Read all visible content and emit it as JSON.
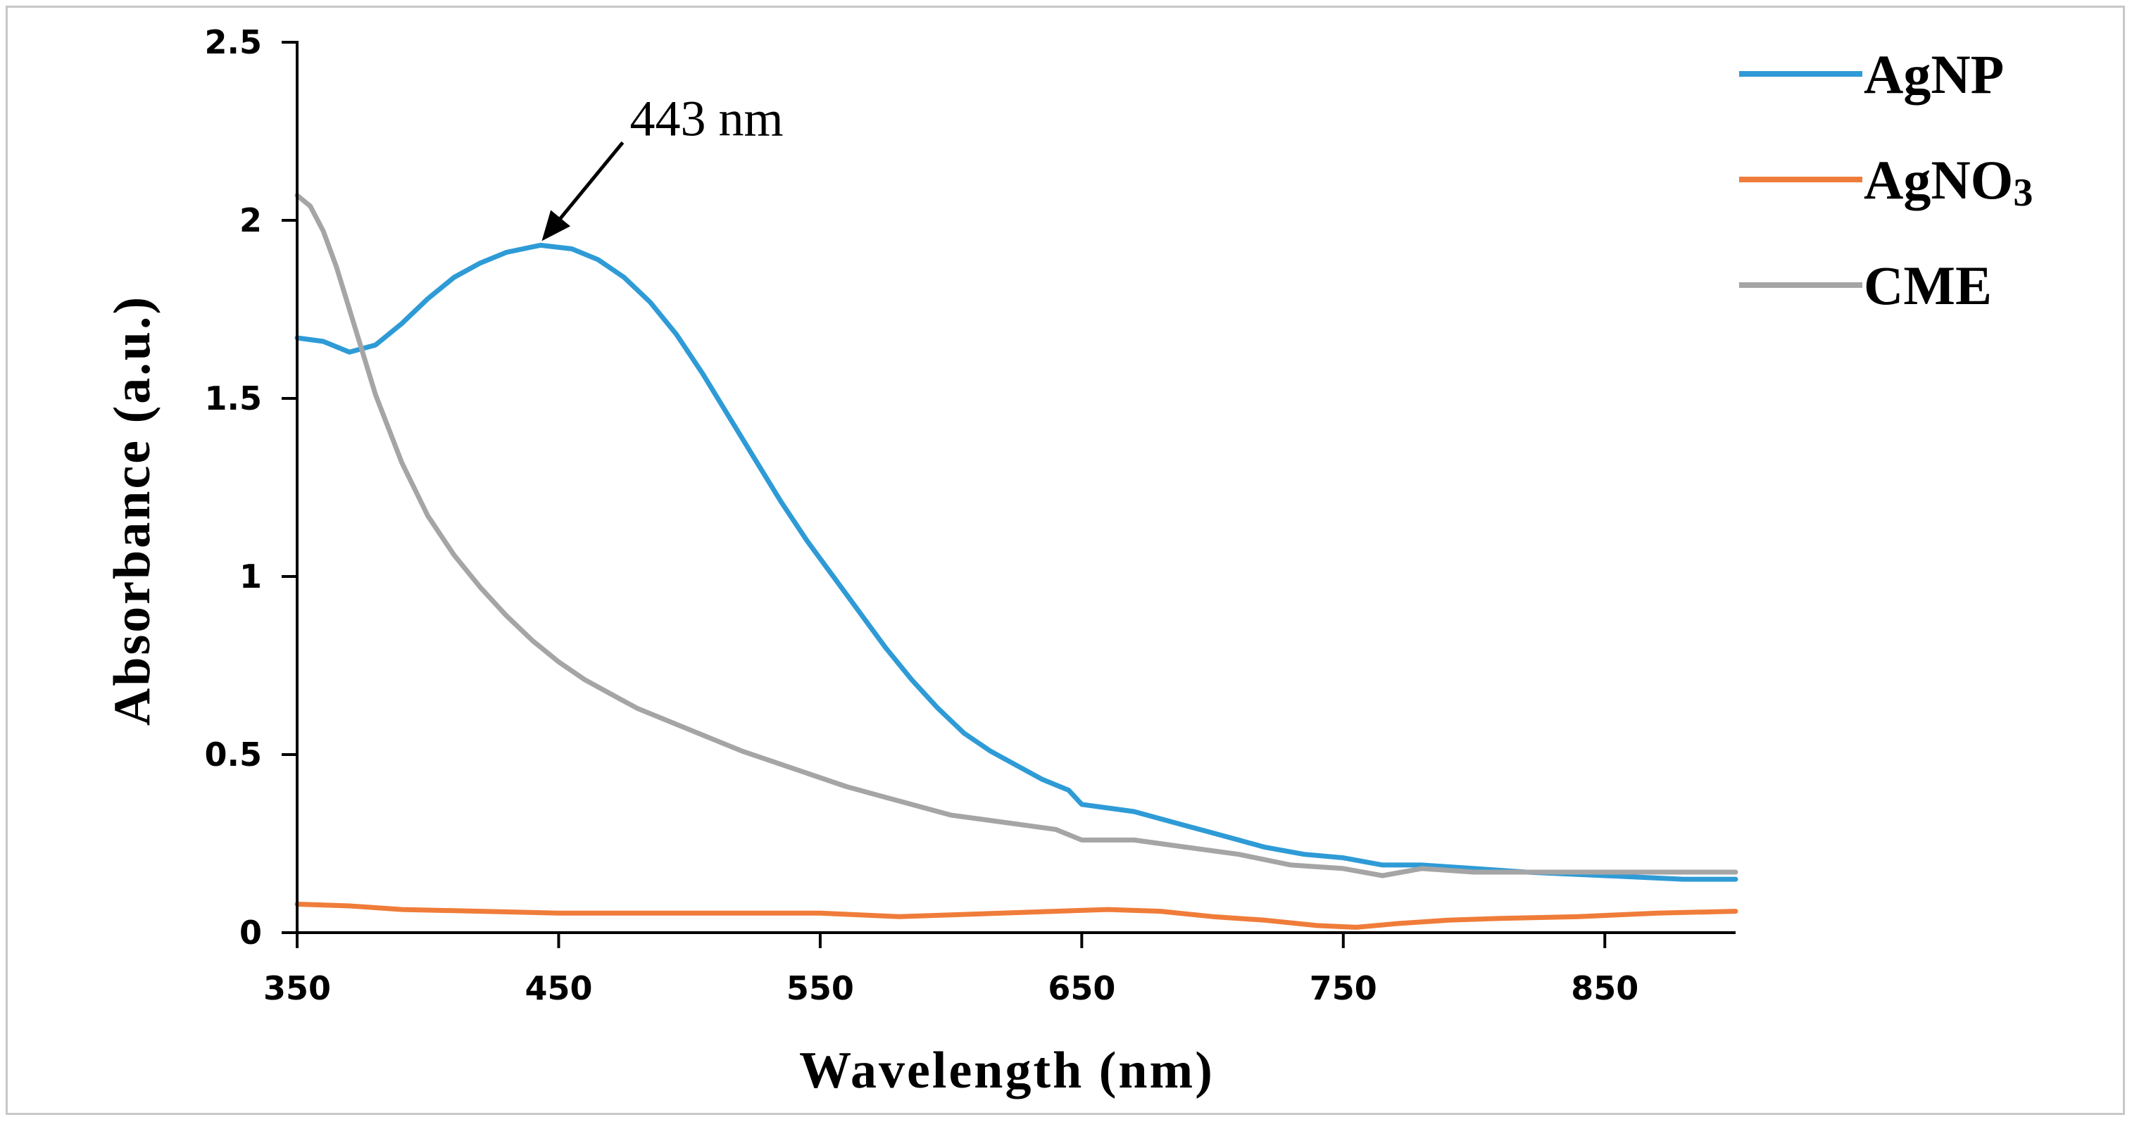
{
  "chart_data": {
    "type": "line",
    "title": "",
    "xlabel": "Wavelength (nm)",
    "ylabel": "Absorbance (a.u.)",
    "xlim": [
      350,
      900
    ],
    "ylim": [
      0,
      2.5
    ],
    "xticks": [
      350,
      450,
      550,
      650,
      750,
      850
    ],
    "xtick_labels": [
      "350",
      "450",
      "550",
      "650",
      "750",
      "850"
    ],
    "yticks": [
      0,
      0.5,
      1,
      1.5,
      2,
      2.5
    ],
    "ytick_labels": [
      "0",
      "0.5",
      "1",
      "1.5",
      "2",
      "2.5"
    ],
    "grid": false,
    "legend_position": "top-right",
    "annotation": {
      "text": "443 nm",
      "x": 443,
      "y": 1.93
    },
    "series": [
      {
        "name": "AgNP",
        "legend_main": "AgNP",
        "legend_sub": "",
        "color": "#2e9bd6",
        "points": [
          [
            350,
            1.67
          ],
          [
            360,
            1.66
          ],
          [
            370,
            1.63
          ],
          [
            380,
            1.65
          ],
          [
            390,
            1.71
          ],
          [
            400,
            1.78
          ],
          [
            410,
            1.84
          ],
          [
            420,
            1.88
          ],
          [
            430,
            1.91
          ],
          [
            443,
            1.93
          ],
          [
            455,
            1.92
          ],
          [
            465,
            1.89
          ],
          [
            475,
            1.84
          ],
          [
            485,
            1.77
          ],
          [
            495,
            1.68
          ],
          [
            505,
            1.57
          ],
          [
            515,
            1.45
          ],
          [
            525,
            1.33
          ],
          [
            535,
            1.21
          ],
          [
            545,
            1.1
          ],
          [
            555,
            1.0
          ],
          [
            565,
            0.9
          ],
          [
            575,
            0.8
          ],
          [
            585,
            0.71
          ],
          [
            595,
            0.63
          ],
          [
            605,
            0.56
          ],
          [
            615,
            0.51
          ],
          [
            625,
            0.47
          ],
          [
            635,
            0.43
          ],
          [
            645,
            0.4
          ],
          [
            650,
            0.36
          ],
          [
            660,
            0.35
          ],
          [
            670,
            0.34
          ],
          [
            680,
            0.32
          ],
          [
            690,
            0.3
          ],
          [
            700,
            0.28
          ],
          [
            710,
            0.26
          ],
          [
            720,
            0.24
          ],
          [
            735,
            0.22
          ],
          [
            750,
            0.21
          ],
          [
            765,
            0.19
          ],
          [
            780,
            0.19
          ],
          [
            800,
            0.18
          ],
          [
            820,
            0.17
          ],
          [
            850,
            0.16
          ],
          [
            880,
            0.15
          ],
          [
            900,
            0.15
          ]
        ]
      },
      {
        "name": "AgNO3",
        "legend_main": "AgNO",
        "legend_sub": "3",
        "color": "#f07c3a",
        "points": [
          [
            350,
            0.08
          ],
          [
            370,
            0.075
          ],
          [
            390,
            0.065
          ],
          [
            420,
            0.06
          ],
          [
            450,
            0.055
          ],
          [
            500,
            0.055
          ],
          [
            550,
            0.055
          ],
          [
            580,
            0.045
          ],
          [
            600,
            0.05
          ],
          [
            640,
            0.06
          ],
          [
            660,
            0.065
          ],
          [
            680,
            0.06
          ],
          [
            700,
            0.045
          ],
          [
            720,
            0.035
          ],
          [
            740,
            0.02
          ],
          [
            755,
            0.015
          ],
          [
            770,
            0.025
          ],
          [
            790,
            0.035
          ],
          [
            810,
            0.04
          ],
          [
            840,
            0.045
          ],
          [
            870,
            0.055
          ],
          [
            900,
            0.06
          ]
        ]
      },
      {
        "name": "CME",
        "legend_main": "CME",
        "legend_sub": "",
        "color": "#a5a5a5",
        "points": [
          [
            350,
            2.07
          ],
          [
            355,
            2.04
          ],
          [
            360,
            1.97
          ],
          [
            365,
            1.87
          ],
          [
            370,
            1.75
          ],
          [
            375,
            1.63
          ],
          [
            380,
            1.51
          ],
          [
            390,
            1.32
          ],
          [
            400,
            1.17
          ],
          [
            410,
            1.06
          ],
          [
            420,
            0.97
          ],
          [
            430,
            0.89
          ],
          [
            440,
            0.82
          ],
          [
            450,
            0.76
          ],
          [
            460,
            0.71
          ],
          [
            470,
            0.67
          ],
          [
            480,
            0.63
          ],
          [
            490,
            0.6
          ],
          [
            500,
            0.57
          ],
          [
            520,
            0.51
          ],
          [
            540,
            0.46
          ],
          [
            560,
            0.41
          ],
          [
            580,
            0.37
          ],
          [
            600,
            0.33
          ],
          [
            620,
            0.31
          ],
          [
            640,
            0.29
          ],
          [
            650,
            0.26
          ],
          [
            670,
            0.26
          ],
          [
            690,
            0.24
          ],
          [
            710,
            0.22
          ],
          [
            730,
            0.19
          ],
          [
            750,
            0.18
          ],
          [
            765,
            0.16
          ],
          [
            780,
            0.18
          ],
          [
            800,
            0.17
          ],
          [
            850,
            0.17
          ],
          [
            900,
            0.17
          ]
        ]
      }
    ]
  }
}
